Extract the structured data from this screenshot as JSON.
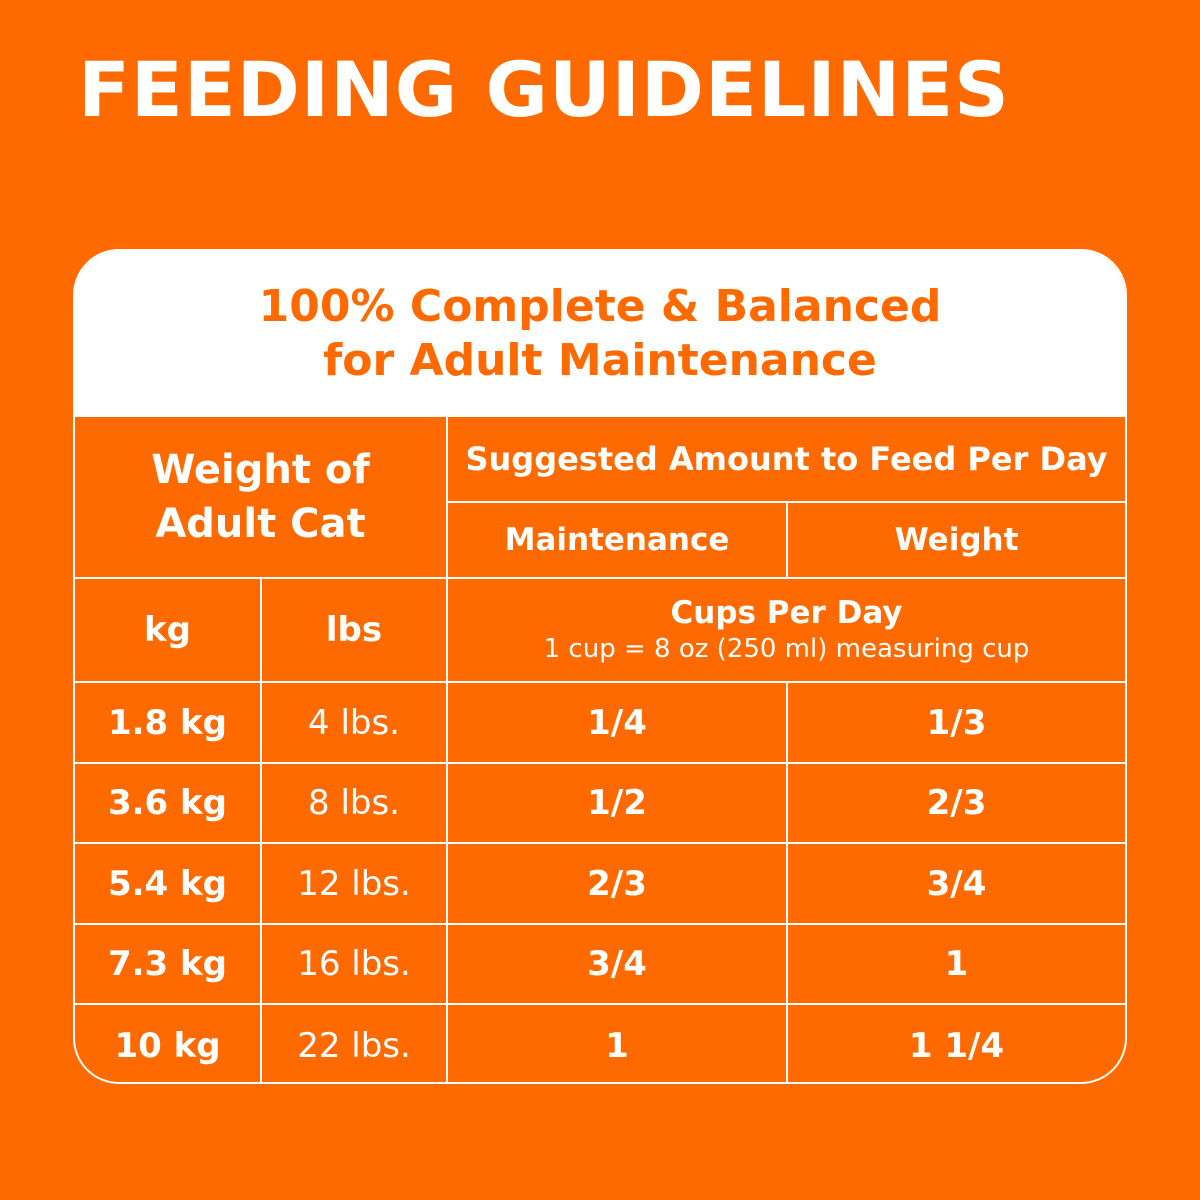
{
  "title": "FEEDING GUIDELINES",
  "card": {
    "header_line1": "100% Complete & Balanced",
    "header_line2": "for Adult Maintenance"
  },
  "table": {
    "weight_header_line1": "Weight of",
    "weight_header_line2": "Adult Cat",
    "suggested_header": "Suggested Amount to Feed Per Day",
    "maintenance_header": "Maintenance",
    "weight_col_header": "Weight",
    "kg_header": "kg",
    "lbs_header": "lbs",
    "cups_header": "Cups Per Day",
    "cups_note": "1 cup = 8 oz (250 ml) measuring cup",
    "rows": [
      {
        "kg": "1.8 kg",
        "lbs": "4 lbs.",
        "maintenance": "1/4",
        "weight": "1/3"
      },
      {
        "kg": "3.6 kg",
        "lbs": "8 lbs.",
        "maintenance": "1/2",
        "weight": "2/3"
      },
      {
        "kg": "5.4 kg",
        "lbs": "12 lbs.",
        "maintenance": "2/3",
        "weight": "3/4"
      },
      {
        "kg": "7.3 kg",
        "lbs": "16 lbs.",
        "maintenance": "3/4",
        "weight": "1"
      },
      {
        "kg": "10 kg",
        "lbs": "22 lbs.",
        "maintenance": "1",
        "weight": "1 1/4"
      }
    ]
  },
  "colors": {
    "background": "#FF6A00",
    "text_light": "#FFFFFF",
    "header_bg": "#FFFFFF"
  }
}
